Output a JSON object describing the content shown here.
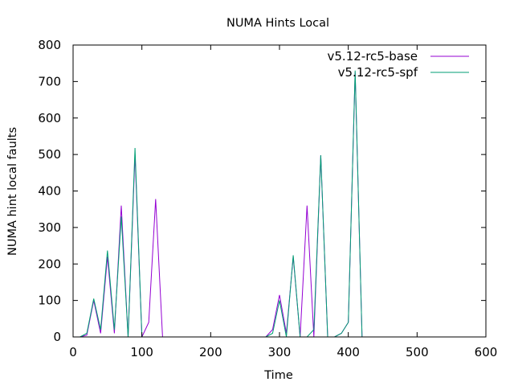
{
  "chart_data": {
    "type": "line",
    "title": "NUMA Hints Local",
    "xlabel": "Time",
    "ylabel": "NUMA hint local faults",
    "xlim": [
      0,
      600
    ],
    "ylim": [
      0,
      800
    ],
    "x_ticks": [
      0,
      100,
      200,
      300,
      400,
      500,
      600
    ],
    "y_ticks": [
      0,
      100,
      200,
      300,
      400,
      500,
      600,
      700,
      800
    ],
    "grid": false,
    "legend_position": "top-right",
    "series": [
      {
        "name": "v5.12-rc5-base",
        "color": "#9400d3",
        "x": [
          10,
          20,
          30,
          40,
          50,
          60,
          70,
          80,
          90,
          100,
          110,
          120,
          130,
          280,
          290,
          300,
          310,
          320,
          330,
          340,
          350,
          360,
          370,
          380,
          390,
          400,
          410,
          420
        ],
        "y": [
          0,
          5,
          100,
          10,
          220,
          10,
          360,
          0,
          500,
          0,
          40,
          378,
          0,
          0,
          20,
          115,
          10,
          220,
          0,
          360,
          0,
          498,
          0,
          0,
          10,
          40,
          725,
          0
        ]
      },
      {
        "name": "v5.12-rc5-spf",
        "color": "#009e73",
        "x": [
          10,
          20,
          30,
          40,
          50,
          60,
          70,
          80,
          90,
          100,
          110,
          120,
          130,
          280,
          290,
          300,
          310,
          320,
          330,
          340,
          350,
          360,
          370,
          380,
          390,
          400,
          410,
          420
        ],
        "y": [
          0,
          10,
          105,
          20,
          237,
          20,
          330,
          0,
          518,
          0,
          0,
          0,
          0,
          0,
          10,
          100,
          0,
          224,
          0,
          0,
          20,
          498,
          0,
          0,
          10,
          40,
          730,
          0
        ]
      }
    ]
  }
}
